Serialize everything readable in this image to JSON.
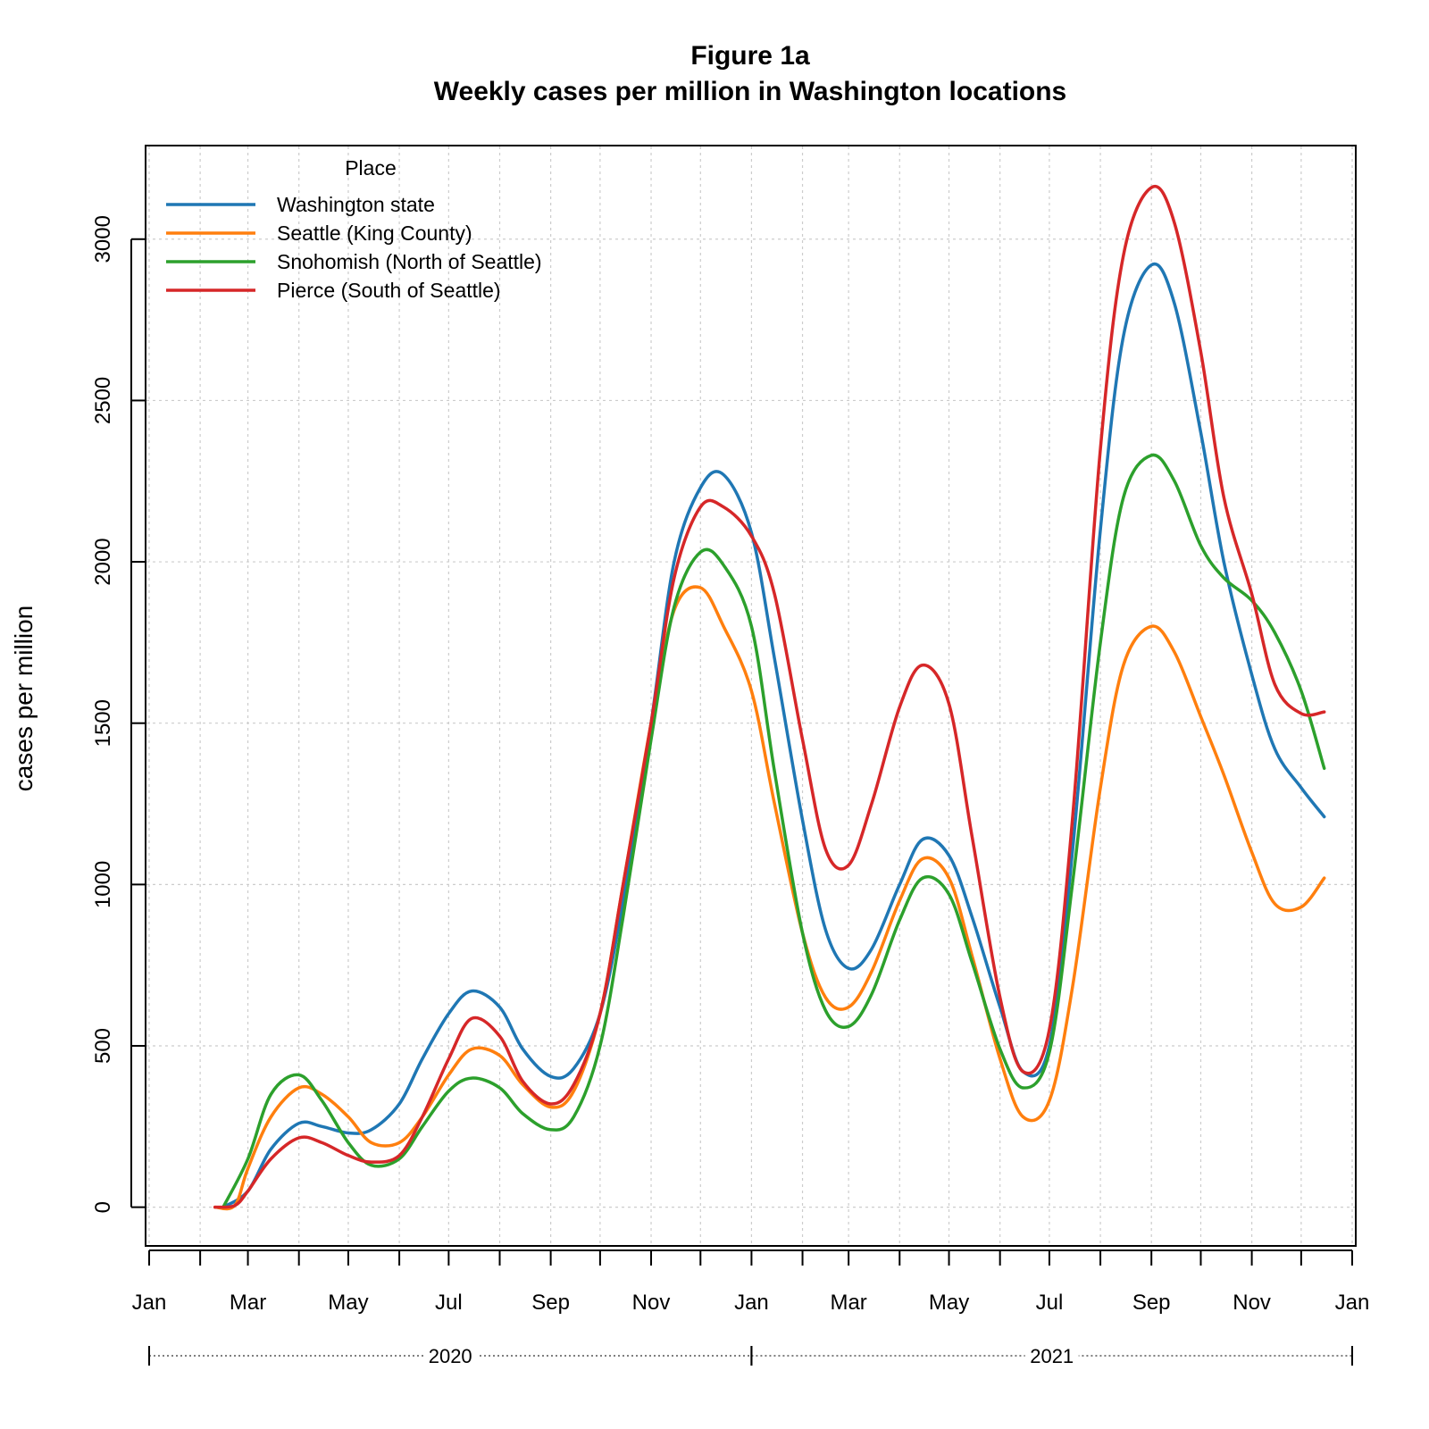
{
  "chart_data": {
    "type": "line",
    "title": "Figure 1a",
    "subtitle": "Weekly cases per million in Washington locations",
    "xlabel": "",
    "ylabel": "cases per million",
    "ylim": [
      -120,
      3290
    ],
    "xlim": [
      "2020-01-01",
      "2022-01-01"
    ],
    "y_ticks": [
      0,
      500,
      1000,
      1500,
      2000,
      2500,
      3000
    ],
    "x_month_ticks": [
      {
        "date": "2020-01-01",
        "label": "Jan"
      },
      {
        "date": "2020-03-01",
        "label": "Mar"
      },
      {
        "date": "2020-05-01",
        "label": "May"
      },
      {
        "date": "2020-07-01",
        "label": "Jul"
      },
      {
        "date": "2020-09-01",
        "label": "Sep"
      },
      {
        "date": "2020-11-01",
        "label": "Nov"
      },
      {
        "date": "2021-01-01",
        "label": "Jan"
      },
      {
        "date": "2021-03-01",
        "label": "Mar"
      },
      {
        "date": "2021-05-01",
        "label": "May"
      },
      {
        "date": "2021-07-01",
        "label": "Jul"
      },
      {
        "date": "2021-09-01",
        "label": "Sep"
      },
      {
        "date": "2021-11-01",
        "label": "Nov"
      },
      {
        "date": "2022-01-01",
        "label": "Jan"
      }
    ],
    "x_year_labels": [
      {
        "start": "2020-01-01",
        "end": "2021-01-01",
        "label": "2020"
      },
      {
        "start": "2021-01-01",
        "end": "2022-01-01",
        "label": "2021"
      }
    ],
    "grid": true,
    "legend": {
      "title": "Place",
      "position": "top-left"
    },
    "series": [
      {
        "name": "Washington state",
        "color": "#1f77b4",
        "points": [
          [
            "2020-02-15",
            0
          ],
          [
            "2020-03-01",
            50
          ],
          [
            "2020-03-15",
            180
          ],
          [
            "2020-04-01",
            260
          ],
          [
            "2020-04-15",
            250
          ],
          [
            "2020-05-01",
            230
          ],
          [
            "2020-05-15",
            240
          ],
          [
            "2020-06-01",
            320
          ],
          [
            "2020-06-15",
            460
          ],
          [
            "2020-07-01",
            600
          ],
          [
            "2020-07-15",
            670
          ],
          [
            "2020-08-01",
            620
          ],
          [
            "2020-08-15",
            490
          ],
          [
            "2020-09-01",
            405
          ],
          [
            "2020-09-15",
            430
          ],
          [
            "2020-10-01",
            600
          ],
          [
            "2020-10-15",
            950
          ],
          [
            "2020-11-01",
            1500
          ],
          [
            "2020-11-15",
            2000
          ],
          [
            "2020-12-01",
            2230
          ],
          [
            "2020-12-15",
            2270
          ],
          [
            "2021-01-01",
            2090
          ],
          [
            "2021-01-15",
            1700
          ],
          [
            "2021-02-01",
            1200
          ],
          [
            "2021-02-15",
            860
          ],
          [
            "2021-03-01",
            740
          ],
          [
            "2021-03-15",
            800
          ],
          [
            "2021-04-01",
            1000
          ],
          [
            "2021-04-15",
            1140
          ],
          [
            "2021-05-01",
            1090
          ],
          [
            "2021-05-15",
            900
          ],
          [
            "2021-06-01",
            620
          ],
          [
            "2021-06-15",
            420
          ],
          [
            "2021-07-01",
            500
          ],
          [
            "2021-07-15",
            1100
          ],
          [
            "2021-08-01",
            2100
          ],
          [
            "2021-08-15",
            2700
          ],
          [
            "2021-09-01",
            2920
          ],
          [
            "2021-09-15",
            2800
          ],
          [
            "2021-10-01",
            2400
          ],
          [
            "2021-10-15",
            2000
          ],
          [
            "2021-11-01",
            1650
          ],
          [
            "2021-11-15",
            1420
          ],
          [
            "2021-12-01",
            1300
          ],
          [
            "2021-12-15",
            1210
          ]
        ]
      },
      {
        "name": "Seattle (King County)",
        "color": "#ff7f0e",
        "points": [
          [
            "2020-02-10",
            0
          ],
          [
            "2020-02-22",
            5
          ],
          [
            "2020-03-01",
            120
          ],
          [
            "2020-03-15",
            280
          ],
          [
            "2020-04-01",
            370
          ],
          [
            "2020-04-15",
            350
          ],
          [
            "2020-05-01",
            280
          ],
          [
            "2020-05-15",
            200
          ],
          [
            "2020-06-01",
            200
          ],
          [
            "2020-06-15",
            280
          ],
          [
            "2020-07-01",
            410
          ],
          [
            "2020-07-15",
            490
          ],
          [
            "2020-08-01",
            470
          ],
          [
            "2020-08-15",
            380
          ],
          [
            "2020-09-01",
            310
          ],
          [
            "2020-09-15",
            360
          ],
          [
            "2020-10-01",
            600
          ],
          [
            "2020-10-15",
            1000
          ],
          [
            "2020-11-01",
            1500
          ],
          [
            "2020-11-15",
            1850
          ],
          [
            "2020-12-01",
            1920
          ],
          [
            "2020-12-15",
            1800
          ],
          [
            "2021-01-01",
            1600
          ],
          [
            "2021-01-15",
            1250
          ],
          [
            "2021-02-01",
            850
          ],
          [
            "2021-02-15",
            650
          ],
          [
            "2021-03-01",
            620
          ],
          [
            "2021-03-15",
            730
          ],
          [
            "2021-04-01",
            950
          ],
          [
            "2021-04-15",
            1080
          ],
          [
            "2021-05-01",
            1020
          ],
          [
            "2021-05-15",
            780
          ],
          [
            "2021-06-01",
            460
          ],
          [
            "2021-06-15",
            280
          ],
          [
            "2021-07-01",
            330
          ],
          [
            "2021-07-15",
            680
          ],
          [
            "2021-08-01",
            1300
          ],
          [
            "2021-08-15",
            1680
          ],
          [
            "2021-09-01",
            1800
          ],
          [
            "2021-09-15",
            1720
          ],
          [
            "2021-10-01",
            1520
          ],
          [
            "2021-10-15",
            1340
          ],
          [
            "2021-11-01",
            1100
          ],
          [
            "2021-11-15",
            940
          ],
          [
            "2021-12-01",
            930
          ],
          [
            "2021-12-15",
            1020
          ]
        ]
      },
      {
        "name": "Snohomish (North of Seattle)",
        "color": "#2ca02c",
        "points": [
          [
            "2020-02-15",
            0
          ],
          [
            "2020-03-01",
            150
          ],
          [
            "2020-03-15",
            350
          ],
          [
            "2020-04-01",
            410
          ],
          [
            "2020-04-15",
            330
          ],
          [
            "2020-05-01",
            200
          ],
          [
            "2020-05-15",
            130
          ],
          [
            "2020-06-01",
            150
          ],
          [
            "2020-06-15",
            250
          ],
          [
            "2020-07-01",
            360
          ],
          [
            "2020-07-15",
            400
          ],
          [
            "2020-08-01",
            370
          ],
          [
            "2020-08-15",
            290
          ],
          [
            "2020-09-01",
            240
          ],
          [
            "2020-09-15",
            280
          ],
          [
            "2020-10-01",
            500
          ],
          [
            "2020-10-15",
            900
          ],
          [
            "2020-11-01",
            1450
          ],
          [
            "2020-11-15",
            1860
          ],
          [
            "2020-12-01",
            2030
          ],
          [
            "2020-12-15",
            1990
          ],
          [
            "2021-01-01",
            1800
          ],
          [
            "2021-01-15",
            1350
          ],
          [
            "2021-02-01",
            850
          ],
          [
            "2021-02-15",
            610
          ],
          [
            "2021-03-01",
            560
          ],
          [
            "2021-03-15",
            660
          ],
          [
            "2021-04-01",
            890
          ],
          [
            "2021-04-15",
            1020
          ],
          [
            "2021-05-01",
            970
          ],
          [
            "2021-05-15",
            760
          ],
          [
            "2021-06-01",
            490
          ],
          [
            "2021-06-15",
            370
          ],
          [
            "2021-07-01",
            480
          ],
          [
            "2021-07-15",
            1000
          ],
          [
            "2021-08-01",
            1750
          ],
          [
            "2021-08-15",
            2200
          ],
          [
            "2021-09-01",
            2330
          ],
          [
            "2021-09-15",
            2250
          ],
          [
            "2021-10-01",
            2050
          ],
          [
            "2021-10-15",
            1950
          ],
          [
            "2021-11-01",
            1880
          ],
          [
            "2021-11-15",
            1780
          ],
          [
            "2021-12-01",
            1600
          ],
          [
            "2021-12-15",
            1360
          ]
        ]
      },
      {
        "name": "Pierce (South of Seattle)",
        "color": "#d62728",
        "points": [
          [
            "2020-02-10",
            0
          ],
          [
            "2020-02-22",
            5
          ],
          [
            "2020-03-01",
            50
          ],
          [
            "2020-03-15",
            150
          ],
          [
            "2020-04-01",
            215
          ],
          [
            "2020-04-15",
            200
          ],
          [
            "2020-05-01",
            160
          ],
          [
            "2020-05-15",
            140
          ],
          [
            "2020-06-01",
            160
          ],
          [
            "2020-06-15",
            280
          ],
          [
            "2020-07-01",
            460
          ],
          [
            "2020-07-15",
            585
          ],
          [
            "2020-08-01",
            530
          ],
          [
            "2020-08-15",
            390
          ],
          [
            "2020-09-01",
            320
          ],
          [
            "2020-09-15",
            380
          ],
          [
            "2020-10-01",
            600
          ],
          [
            "2020-10-15",
            1000
          ],
          [
            "2020-11-01",
            1500
          ],
          [
            "2020-11-15",
            1950
          ],
          [
            "2020-12-01",
            2170
          ],
          [
            "2020-12-15",
            2170
          ],
          [
            "2021-01-01",
            2080
          ],
          [
            "2021-01-15",
            1900
          ],
          [
            "2021-02-01",
            1450
          ],
          [
            "2021-02-15",
            1110
          ],
          [
            "2021-03-01",
            1060
          ],
          [
            "2021-03-15",
            1250
          ],
          [
            "2021-04-01",
            1550
          ],
          [
            "2021-04-15",
            1680
          ],
          [
            "2021-05-01",
            1560
          ],
          [
            "2021-05-15",
            1150
          ],
          [
            "2021-06-01",
            650
          ],
          [
            "2021-06-15",
            420
          ],
          [
            "2021-07-01",
            550
          ],
          [
            "2021-07-15",
            1200
          ],
          [
            "2021-08-01",
            2350
          ],
          [
            "2021-08-15",
            2950
          ],
          [
            "2021-09-01",
            3160
          ],
          [
            "2021-09-15",
            3050
          ],
          [
            "2021-10-01",
            2650
          ],
          [
            "2021-10-15",
            2200
          ],
          [
            "2021-11-01",
            1900
          ],
          [
            "2021-11-15",
            1620
          ],
          [
            "2021-12-01",
            1530
          ],
          [
            "2021-12-15",
            1535
          ]
        ]
      }
    ]
  }
}
